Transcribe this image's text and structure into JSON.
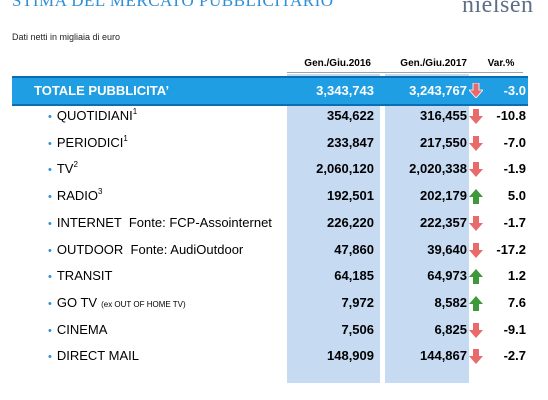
{
  "header": {
    "title": "STIMA DEL MERCATO PUBBLICITARIO",
    "logo": "nielsen",
    "subtitle": "Dati netti in migliaia di euro"
  },
  "columns": {
    "period1": "Gen./Giu.2016",
    "period2": "Gen./Giu.2017",
    "variation": "Var.%"
  },
  "colors": {
    "total_bar": "#1f9ee3",
    "column_highlight": "#c6daf2",
    "arrow_up": "#3c9a3c",
    "arrow_down": "#e86a6a"
  },
  "total": {
    "label": "TOTALE PUBBLICITA’",
    "v2016": "3,343,743",
    "v2017": "3,243,767",
    "trend": "down",
    "pct": "-3.0"
  },
  "rows": [
    {
      "label": "QUOTIDIANI",
      "sup": "1",
      "v2016": "354,622",
      "v2017": "316,455",
      "trend": "down",
      "pct": "-10.8"
    },
    {
      "label": "PERIODICI",
      "sup": "1",
      "v2016": "233,847",
      "v2017": "217,550",
      "trend": "down",
      "pct": "-7.0"
    },
    {
      "label": "TV",
      "sup": "2",
      "v2016": "2,060,120",
      "v2017": "2,020,338",
      "trend": "down",
      "pct": "-1.9"
    },
    {
      "label": "RADIO",
      "sup": "3",
      "v2016": "192,501",
      "v2017": "202,179",
      "trend": "up",
      "pct": "5.0"
    },
    {
      "label": "INTERNET  Fonte: FCP-Assointernet",
      "sup": "",
      "v2016": "226,220",
      "v2017": "222,357",
      "trend": "down",
      "pct": "-1.7"
    },
    {
      "label": "OUTDOOR  Fonte: AudiOutdoor",
      "sup": "",
      "v2016": "47,860",
      "v2017": "39,640",
      "trend": "down",
      "pct": "-17.2"
    },
    {
      "label": "TRANSIT",
      "sup": "",
      "v2016": "64,185",
      "v2017": "64,973",
      "trend": "up",
      "pct": "1.2"
    },
    {
      "label": "GO TV",
      "sup": "",
      "small": "(ex OUT OF HOME TV)",
      "v2016": "7,972",
      "v2017": "8,582",
      "trend": "up",
      "pct": "7.6"
    },
    {
      "label": "CINEMA",
      "sup": "",
      "v2016": "7,506",
      "v2017": "6,825",
      "trend": "down",
      "pct": "-9.1"
    },
    {
      "label": "DIRECT MAIL",
      "sup": "",
      "v2016": "148,909",
      "v2017": "144,867",
      "trend": "down",
      "pct": "-2.7"
    }
  ]
}
